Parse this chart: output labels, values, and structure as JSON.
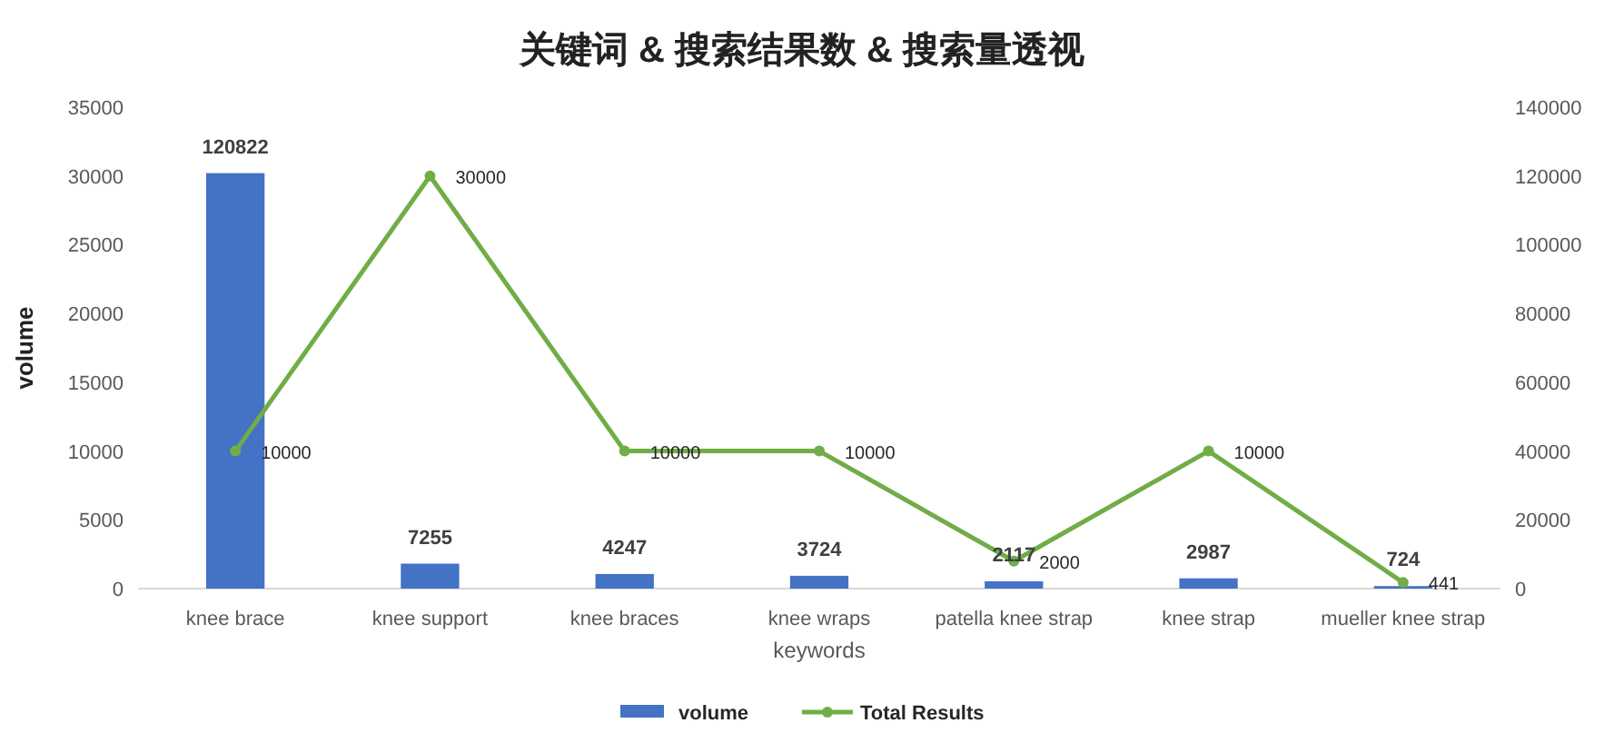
{
  "chart_data": {
    "type": "bar",
    "title": "关键词 & 搜索结果数 & 搜索量透视",
    "xlabel": "keywords",
    "ylabel": "volume",
    "categories": [
      "knee brace",
      "knee support",
      "knee braces",
      "knee wraps",
      "patella knee strap",
      "knee strap",
      "mueller knee strap"
    ],
    "series": [
      {
        "name": "volume",
        "axis": "y2",
        "color": "#4472c4",
        "values": [
          120822,
          7255,
          4247,
          3724,
          2117,
          2987,
          724
        ]
      },
      {
        "name": "Total Results",
        "type": "line",
        "axis": "y",
        "color": "#70ad47",
        "marker": "circle",
        "values": [
          10000,
          30000,
          10000,
          10000,
          2000,
          10000,
          441
        ]
      }
    ],
    "ylim": [
      0,
      35000
    ],
    "yticks": [
      0,
      5000,
      10000,
      15000,
      20000,
      25000,
      30000,
      35000
    ],
    "y2lim": [
      0,
      140000
    ],
    "y2ticks": [
      0,
      20000,
      40000,
      60000,
      80000,
      100000,
      120000,
      140000
    ],
    "data_labels": true,
    "grid": false,
    "legend": "bottom"
  }
}
